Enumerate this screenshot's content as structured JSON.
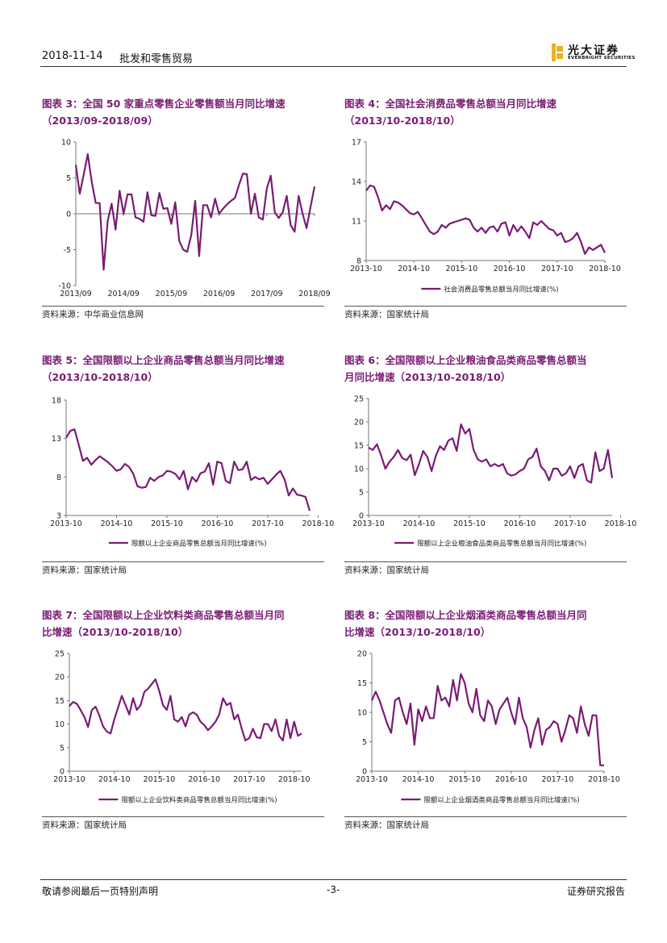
{
  "header": {
    "date": "2018-11-14",
    "topic": "批发和零售贸易",
    "logo_cn": "光大证券",
    "logo_en": "EVERBRIGHT SECURITIES",
    "brand_color": "#e9b21f"
  },
  "footer": {
    "left": "敬请参阅最后一页特别声明",
    "page": "-3-",
    "right": "证券研究报告"
  },
  "accent_color": "#7a1c74",
  "figures": [
    {
      "title_1": "图表 3：全国 50 家重点零售企业零售额当月同比增速",
      "title_2": "（2013/09-2018/09）",
      "source": "资料来源：中华商业信息网"
    },
    {
      "title_1": "图表 4：全国社会消费品零售总额当月同比增速",
      "title_2": "（2013/10-2018/10）",
      "source": "资料来源：国家统计局"
    },
    {
      "title_1": "图表 5：全国限额以上企业商品零售总额当月同比增速",
      "title_2": "（2013/10-2018/10）",
      "source": "资料来源：国家统计局"
    },
    {
      "title_1": "图表 6：全国限额以上企业粮油食品类商品零售总额当",
      "title_2": "月同比增速（2013/10-2018/10）",
      "source": "资料来源：国家统计局"
    },
    {
      "title_1": "图表 7：全国限额以上企业饮料类商品零售总额当月同",
      "title_2": "比增速（2013/10-2018/10）",
      "source": "资料来源：国家统计局"
    },
    {
      "title_1": "图表 8：全国限额以上企业烟酒类商品零售总额当月同",
      "title_2": "比增速（2013/10-2018/10）",
      "source": "资料来源：国家统计局"
    }
  ],
  "chart_data": [
    {
      "type": "line",
      "color": "#7a1c74",
      "legend": "",
      "ylim": [
        -10,
        10
      ],
      "yticks": [
        -10,
        -5,
        0,
        5,
        10
      ],
      "xticks": [
        "2013/09",
        "2014/09",
        "2015/09",
        "2016/09",
        "2017/09",
        "2018/09"
      ],
      "values": [
        6.8,
        2.8,
        5.5,
        8.3,
        4.5,
        1.5,
        1.5,
        -7.8,
        -1.0,
        1.4,
        -2.2,
        3.2,
        0.0,
        2.7,
        2.7,
        -0.5,
        -0.7,
        -1.1,
        3.0,
        -0.2,
        -0.3,
        2.9,
        0.7,
        0.8,
        -1.4,
        1.6,
        -3.8,
        -5.0,
        -5.3,
        -3.0,
        1.8,
        -5.9,
        1.2,
        1.2,
        -0.5,
        2.1,
        0.0,
        0.7,
        1.3,
        1.8,
        2.2,
        4.0,
        5.6,
        5.5,
        0.0,
        2.8,
        -0.5,
        -0.8,
        3.5,
        5.3,
        0.2,
        -0.6,
        0.2,
        2.5,
        -1.6,
        -2.5,
        2.5,
        0.0,
        -2.0,
        1.0,
        3.8
      ]
    },
    {
      "type": "line",
      "color": "#7a1c74",
      "legend": "社会消费品零售总额当月同比增速(%)",
      "ylim": [
        8,
        17
      ],
      "yticks": [
        8,
        11,
        14,
        17
      ],
      "xticks": [
        "2013-10",
        "2014-10",
        "2015-10",
        "2016-10",
        "2017-10",
        "2018-10"
      ],
      "values": [
        13.3,
        13.7,
        13.6,
        12.8,
        11.8,
        12.2,
        11.9,
        12.5,
        12.4,
        12.2,
        11.9,
        11.6,
        11.5,
        11.7,
        11.2,
        10.7,
        10.2,
        10.0,
        10.2,
        10.7,
        10.5,
        10.8,
        10.9,
        11.0,
        11.1,
        11.2,
        11.1,
        10.5,
        10.2,
        10.5,
        10.1,
        10.5,
        10.6,
        10.2,
        10.8,
        10.9,
        9.9,
        10.7,
        10.2,
        10.6,
        10.2,
        9.7,
        10.9,
        10.7,
        11.0,
        10.7,
        10.4,
        10.3,
        9.9,
        10.1,
        9.4,
        9.5,
        9.7,
        10.1,
        9.4,
        8.5,
        9.0,
        8.8,
        9.0,
        9.2,
        8.6
      ]
    },
    {
      "type": "line",
      "color": "#7a1c74",
      "legend": "限额以上企业商品零售总额当月同比增速(%)",
      "ylim": [
        3,
        18
      ],
      "yticks": [
        3,
        8,
        13,
        18
      ],
      "xticks": [
        "2013-10",
        "2014-10",
        "2015-10",
        "2016-10",
        "2017-10",
        "2018-10"
      ],
      "values": [
        13.1,
        14.0,
        14.2,
        12.2,
        10.1,
        10.5,
        9.6,
        10.2,
        10.7,
        10.3,
        9.9,
        9.4,
        8.8,
        9.0,
        9.7,
        9.3,
        8.4,
        6.8,
        6.6,
        6.7,
        7.9,
        7.5,
        8.0,
        8.2,
        8.8,
        8.7,
        8.4,
        7.7,
        8.8,
        6.4,
        8.0,
        7.4,
        8.5,
        8.7,
        9.8,
        7.0,
        10.0,
        9.8,
        7.5,
        7.2,
        10.0,
        8.9,
        9.0,
        10.0,
        7.6,
        8.0,
        7.7,
        7.9,
        7.1,
        7.7,
        8.3,
        8.8,
        7.7,
        5.6,
        6.5,
        5.7,
        5.6,
        5.4,
        3.6
      ]
    },
    {
      "type": "line",
      "color": "#7a1c74",
      "legend": "限额以上企业粮油食品类商品零售总额当月同比增速(%)",
      "ylim": [
        0,
        25
      ],
      "yticks": [
        0,
        5,
        10,
        15,
        20,
        25
      ],
      "xticks": [
        "2013-10",
        "2014-10",
        "2015-10",
        "2016-10",
        "2017-10",
        "2018-10"
      ],
      "values": [
        14.5,
        14.0,
        15.2,
        12.8,
        10.0,
        11.5,
        12.5,
        14.0,
        12.3,
        11.8,
        13.0,
        8.6,
        11.0,
        13.8,
        12.5,
        9.5,
        12.7,
        14.8,
        14.0,
        16.0,
        16.5,
        13.8,
        19.5,
        17.5,
        18.5,
        14.0,
        12.0,
        11.5,
        12.0,
        10.5,
        11.0,
        10.5,
        11.0,
        9.0,
        8.5,
        8.8,
        9.5,
        10.0,
        12.0,
        12.5,
        14.3,
        10.5,
        9.5,
        7.5,
        10.0,
        10.0,
        8.5,
        9.0,
        10.5,
        8.0,
        10.5,
        11.0,
        7.5,
        7.0,
        13.5,
        9.5,
        10.0,
        14.0,
        8.0
      ]
    },
    {
      "type": "line",
      "color": "#7a1c74",
      "legend": "限额以上企业饮料类商品零售总额当月同比增速(%)",
      "ylim": [
        0,
        25
      ],
      "yticks": [
        0,
        5,
        10,
        15,
        20,
        25
      ],
      "xticks": [
        "2013-10",
        "2014-10",
        "2015-10",
        "2016-10",
        "2017-10",
        "2018-10"
      ],
      "values": [
        13.8,
        14.7,
        14.3,
        13.0,
        11.5,
        9.4,
        13.0,
        13.7,
        11.8,
        9.5,
        8.4,
        8.0,
        11.0,
        13.5,
        16.0,
        14.0,
        12.0,
        15.5,
        13.0,
        14.0,
        16.8,
        17.5,
        18.5,
        19.5,
        17.0,
        14.0,
        13.0,
        16.0,
        11.0,
        10.5,
        11.5,
        9.5,
        12.0,
        12.5,
        12.0,
        10.5,
        9.8,
        8.7,
        9.5,
        10.5,
        12.0,
        15.5,
        14.0,
        14.5,
        11.0,
        12.0,
        9.0,
        6.5,
        7.0,
        9.0,
        7.2,
        7.0,
        10.0,
        10.0,
        8.5,
        11.0,
        7.5,
        6.5,
        11.0,
        7.0,
        10.5,
        7.5,
        8.0
      ]
    },
    {
      "type": "line",
      "color": "#7a1c74",
      "legend": "限额以上企业烟酒类商品零售总额当月同比增速(%)",
      "ylim": [
        0,
        20
      ],
      "yticks": [
        0,
        5,
        10,
        15,
        20
      ],
      "xticks": [
        "2013-10",
        "2014-10",
        "2015-10",
        "2016-10",
        "2017-10",
        "2018-10"
      ],
      "values": [
        12.0,
        13.5,
        12.0,
        10.0,
        8.0,
        6.5,
        12.0,
        12.5,
        10.0,
        8.0,
        11.5,
        4.5,
        10.5,
        8.5,
        11.0,
        9.0,
        9.0,
        14.5,
        12.0,
        12.5,
        11.0,
        15.5,
        12.0,
        16.5,
        15.0,
        11.5,
        10.0,
        14.0,
        9.5,
        8.5,
        12.0,
        11.0,
        8.0,
        10.5,
        11.5,
        12.5,
        10.0,
        8.0,
        12.5,
        9.0,
        7.5,
        4.0,
        7.0,
        9.0,
        4.5,
        7.0,
        7.5,
        8.5,
        8.0,
        5.0,
        7.0,
        9.5,
        9.0,
        6.5,
        11.0,
        8.0,
        6.0,
        9.5,
        9.5,
        1.0,
        1.0
      ]
    }
  ]
}
